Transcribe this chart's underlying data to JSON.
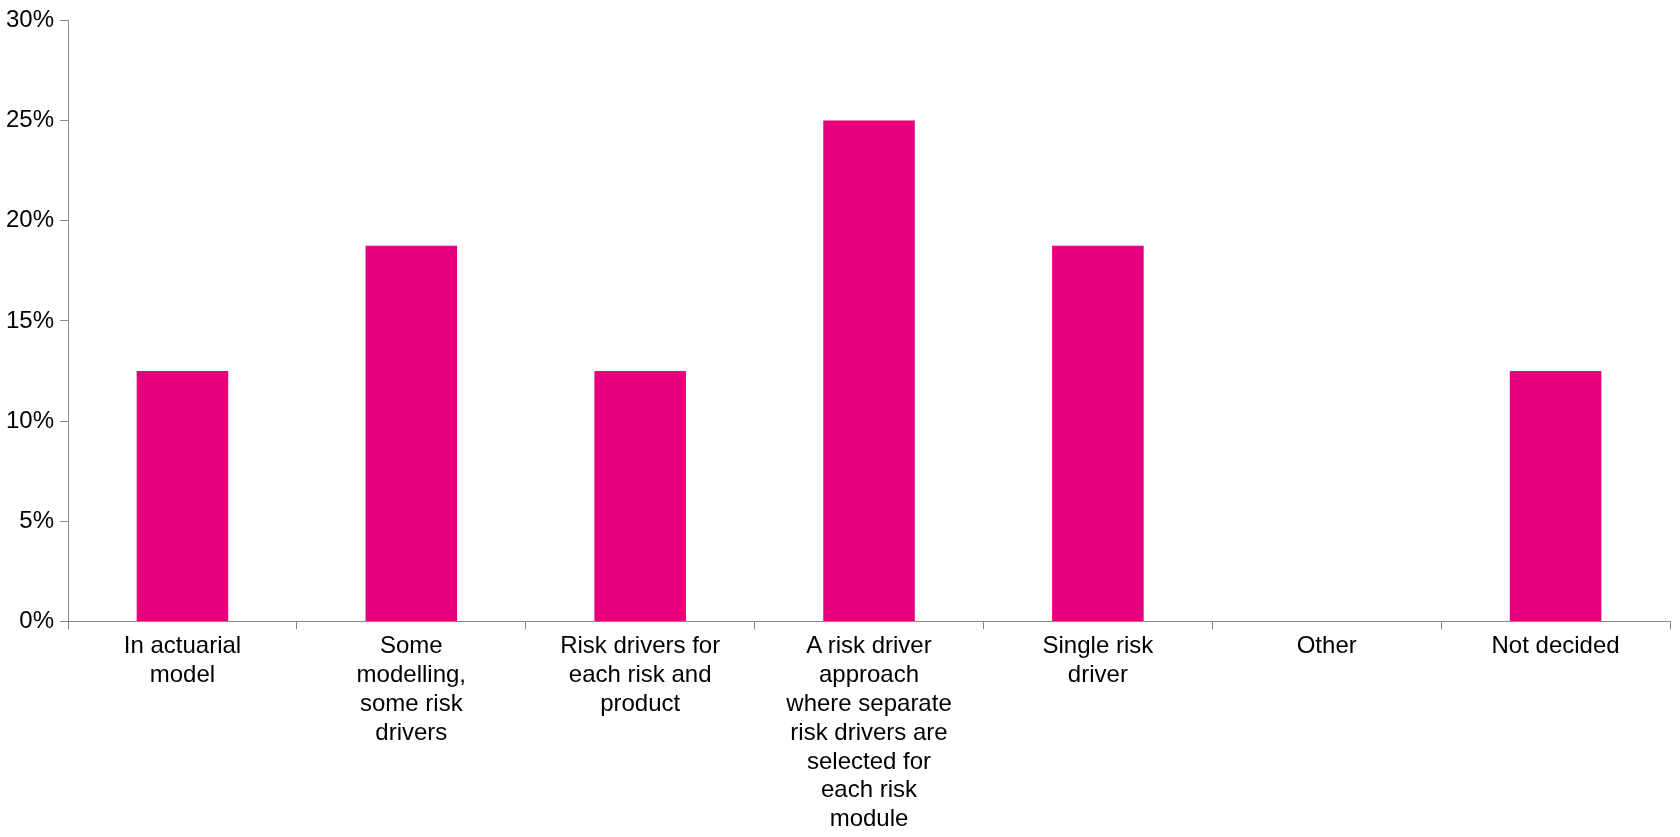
{
  "chart_data": {
    "type": "bar",
    "categories": [
      "In actuarial model",
      "Some modelling, some risk drivers",
      "Risk drivers for each risk and product",
      "A risk driver approach where separate risk drivers are selected for each risk module",
      "Single risk driver",
      "Other",
      "Not decided"
    ],
    "values": [
      12.5,
      18.75,
      12.5,
      25,
      18.75,
      0,
      12.5
    ],
    "color": "#e6007e",
    "ylim": [
      0,
      30
    ],
    "yticks": [
      {
        "value": 0,
        "label": "0%"
      },
      {
        "value": 5,
        "label": "5%"
      },
      {
        "value": 10,
        "label": "10%"
      },
      {
        "value": 15,
        "label": "15%"
      },
      {
        "value": 20,
        "label": "20%"
      },
      {
        "value": 25,
        "label": "25%"
      },
      {
        "value": 30,
        "label": "30%"
      }
    ],
    "grid": false,
    "legend": false
  }
}
